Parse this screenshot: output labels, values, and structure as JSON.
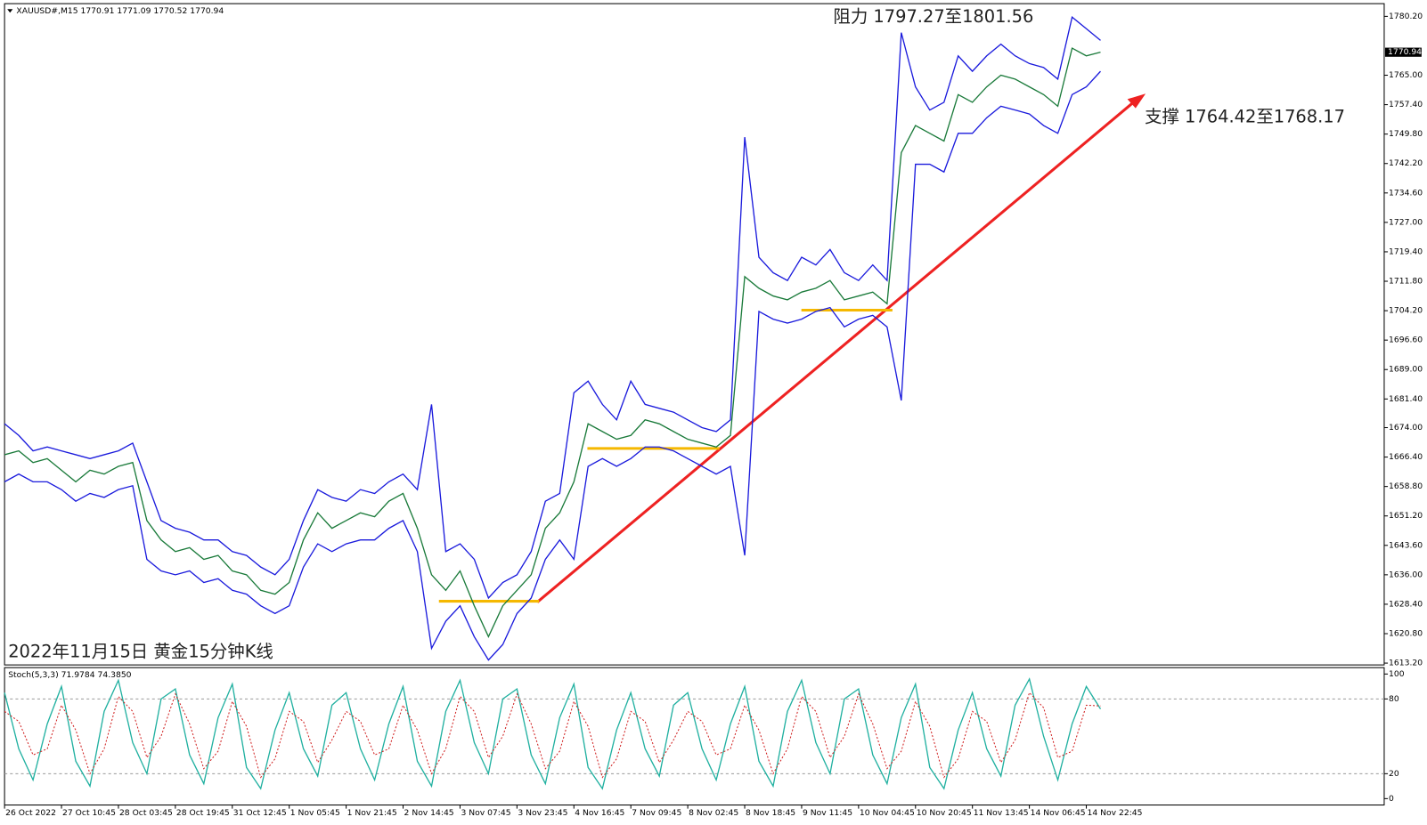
{
  "header": "XAUUSD#,M15  1770.91 1771.09 1770.52 1770.94",
  "chart_data": [
    {
      "type": "line",
      "title": "2022年11月15日 黄金15分钟K线",
      "annotations": [
        "阻力 1797.27至1801.56",
        "支撑 1764.42至1768.17"
      ],
      "last_price": 1770.94,
      "categories": [
        "26 Oct 2022",
        null,
        null,
        null,
        "27 Oct 10:45",
        null,
        null,
        null,
        "28 Oct 03:45",
        null,
        null,
        null,
        "28 Oct 19:45",
        null,
        null,
        null,
        "31 Oct 12:45",
        null,
        null,
        null,
        "1 Nov 05:45",
        null,
        null,
        null,
        "1 Nov 21:45",
        null,
        null,
        null,
        "2 Nov 14:45",
        null,
        null,
        null,
        "3 Nov 07:45",
        null,
        null,
        null,
        "3 Nov 23:45",
        null,
        null,
        null,
        "4 Nov 16:45",
        null,
        null,
        null,
        "7 Nov 09:45",
        null,
        null,
        null,
        "8 Nov 02:45",
        null,
        null,
        null,
        "8 Nov 18:45",
        null,
        null,
        null,
        "9 Nov 11:45",
        null,
        null,
        null,
        "10 Nov 04:45",
        null,
        null,
        null,
        "10 Nov 20:45",
        null,
        null,
        null,
        "11 Nov 13:45",
        null,
        null,
        null,
        "14 Nov 06:45",
        null,
        null,
        null,
        "14 Nov 22:45",
        null,
        null
      ],
      "series": [
        {
          "color": "#1a1adc",
          "values": [
            1675,
            1672,
            1668,
            1669,
            1668,
            1667,
            1666,
            1667,
            1668,
            1670,
            1660,
            1650,
            1648,
            1647,
            1645,
            1645,
            1642,
            1641,
            1638,
            1636,
            1640,
            1650,
            1658,
            1656,
            1655,
            1658,
            1657,
            1660,
            1662,
            1658,
            1680,
            1642,
            1644,
            1640,
            1630,
            1634,
            1636,
            1642,
            1655,
            1657,
            1683,
            1686,
            1680,
            1676,
            1686,
            1680,
            1679,
            1678,
            1676,
            1674,
            1673,
            1676,
            1749,
            1718,
            1714,
            1712,
            1718,
            1716,
            1720,
            1714,
            1712,
            1716,
            1712,
            1776,
            1762,
            1756,
            1758,
            1770,
            1766,
            1770,
            1773,
            1770,
            1768,
            1767,
            1764,
            1780,
            1777,
            1774,
            null
          ]
        },
        {
          "color": "#1a1adc",
          "values": [
            1660,
            1662,
            1660,
            1660,
            1658,
            1655,
            1657,
            1656,
            1658,
            1659,
            1640,
            1637,
            1636,
            1637,
            1634,
            1635,
            1632,
            1631,
            1628,
            1626,
            1628,
            1638,
            1644,
            1642,
            1644,
            1645,
            1645,
            1648,
            1650,
            1642,
            1617,
            1624,
            1628,
            1620,
            1614,
            1618,
            1626,
            1630,
            1640,
            1645,
            1640,
            1664,
            1666,
            1664,
            1666,
            1669,
            1669,
            1668,
            1666,
            1664,
            1662,
            1664,
            1641,
            1704,
            1702,
            1701,
            1702,
            1704,
            1705,
            1700,
            1702,
            1703,
            1700,
            1681,
            1742,
            1742,
            1740,
            1750,
            1750,
            1754,
            1757,
            1756,
            1755,
            1752,
            1750,
            1760,
            1762,
            1766,
            null
          ]
        },
        {
          "color": "#1a7a3a",
          "values": [
            1667,
            1668,
            1665,
            1666,
            1663,
            1660,
            1663,
            1662,
            1664,
            1665,
            1650,
            1645,
            1642,
            1643,
            1640,
            1641,
            1637,
            1636,
            1632,
            1631,
            1634,
            1645,
            1652,
            1648,
            1650,
            1652,
            1651,
            1655,
            1657,
            1648,
            1636,
            1632,
            1637,
            1628,
            1620,
            1628,
            1632,
            1636,
            1648,
            1652,
            1660,
            1675,
            1673,
            1671,
            1672,
            1676,
            1675,
            1673,
            1671,
            1670,
            1669,
            1672,
            1713,
            1710,
            1708,
            1707,
            1709,
            1710,
            1712,
            1707,
            1708,
            1709,
            1706,
            1745,
            1752,
            1750,
            1748,
            1760,
            1758,
            1762,
            1765,
            1764,
            1762,
            1760,
            1757,
            1772,
            1770,
            1770.94,
            null
          ]
        }
      ],
      "ylim": [
        1612.73,
        1783.25
      ],
      "yticks": [
        {
          "value": 1613.2,
          "label": "1613.20"
        },
        {
          "value": 1620.8,
          "label": "1620.80"
        },
        {
          "value": 1628.4,
          "label": "1628.40"
        },
        {
          "value": 1636,
          "label": "1636.00"
        },
        {
          "value": 1643.6,
          "label": "1643.60"
        },
        {
          "value": 1651.2,
          "label": "1651.20"
        },
        {
          "value": 1658.8,
          "label": "1658.80"
        },
        {
          "value": 1666.4,
          "label": "1666.40"
        },
        {
          "value": 1674,
          "label": "1674.00"
        },
        {
          "value": 1681.4,
          "label": "1681.40"
        },
        {
          "value": 1689,
          "label": "1689.00"
        },
        {
          "value": 1696.6,
          "label": "1696.60"
        },
        {
          "value": 1704.2,
          "label": "1704.20"
        },
        {
          "value": 1711.8,
          "label": "1711.80"
        },
        {
          "value": 1719.4,
          "label": "1719.40"
        },
        {
          "value": 1727,
          "label": "1727.00"
        },
        {
          "value": 1734.6,
          "label": "1734.60"
        },
        {
          "value": 1742.2,
          "label": "1742.20"
        },
        {
          "value": 1749.8,
          "label": "1749.80"
        },
        {
          "value": 1757.4,
          "label": "1757.40"
        },
        {
          "value": 1765,
          "label": "1765.00"
        },
        {
          "value": 1780.2,
          "label": "1780.20"
        }
      ],
      "grid": false
    },
    {
      "type": "line",
      "title": "Stoch(5,3,3) 71.9784 74.3850",
      "series": [
        {
          "color": "#20b0a0",
          "values": [
            85,
            40,
            15,
            60,
            90,
            30,
            10,
            70,
            95,
            45,
            20,
            80,
            88,
            35,
            12,
            65,
            92,
            25,
            8,
            55,
            85,
            40,
            18,
            75,
            85,
            40,
            15,
            60,
            90,
            30,
            10,
            70,
            95,
            45,
            20,
            80,
            88,
            35,
            12,
            65,
            92,
            25,
            8,
            55,
            85,
            40,
            18,
            75,
            85,
            40,
            15,
            60,
            90,
            30,
            10,
            70,
            95,
            45,
            20,
            80,
            88,
            35,
            12,
            65,
            92,
            25,
            8,
            55,
            85,
            40,
            18,
            75,
            96,
            50,
            15,
            60,
            90,
            71.9784,
            null
          ]
        },
        {
          "color": "#d02020",
          "dash": true,
          "values": [
            70,
            62,
            35,
            40,
            75,
            55,
            20,
            40,
            82,
            70,
            33,
            50,
            84,
            60,
            24,
            38,
            78,
            58,
            17,
            32,
            70,
            62,
            29,
            47,
            70,
            62,
            35,
            40,
            75,
            55,
            20,
            40,
            82,
            70,
            33,
            50,
            84,
            60,
            24,
            38,
            78,
            58,
            17,
            32,
            70,
            62,
            29,
            47,
            70,
            62,
            35,
            40,
            75,
            55,
            20,
            40,
            82,
            70,
            33,
            50,
            84,
            60,
            24,
            38,
            78,
            58,
            17,
            32,
            70,
            62,
            29,
            47,
            85,
            73,
            33,
            38,
            75,
            74.385,
            null
          ]
        }
      ],
      "ylim": [
        0,
        100
      ],
      "yticks": [
        0,
        20,
        80,
        100
      ],
      "grid": true
    }
  ]
}
